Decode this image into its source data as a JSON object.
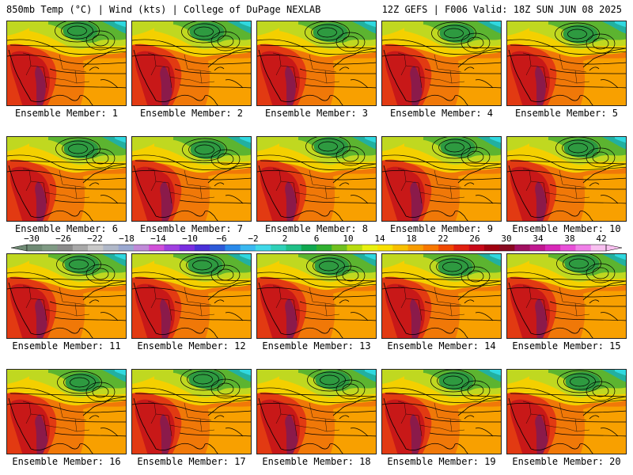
{
  "header": {
    "left": "850mb Temp (°C) | Wind (kts) | College of DuPage NEXLAB",
    "right": "12Z GEFS | F006 Valid: 18Z SUN JUN 08 2025"
  },
  "panels": [
    {
      "label": "Ensemble Member: 1"
    },
    {
      "label": "Ensemble Member: 2"
    },
    {
      "label": "Ensemble Member: 3"
    },
    {
      "label": "Ensemble Member: 4"
    },
    {
      "label": "Ensemble Member: 5"
    },
    {
      "label": "Ensemble Member: 6"
    },
    {
      "label": "Ensemble Member: 7"
    },
    {
      "label": "Ensemble Member: 8"
    },
    {
      "label": "Ensemble Member: 9"
    },
    {
      "label": "Ensemble Member: 10"
    },
    {
      "label": "Ensemble Member: 11"
    },
    {
      "label": "Ensemble Member: 12"
    },
    {
      "label": "Ensemble Member: 13"
    },
    {
      "label": "Ensemble Member: 14"
    },
    {
      "label": "Ensemble Member: 15"
    },
    {
      "label": "Ensemble Member: 16"
    },
    {
      "label": "Ensemble Member: 17"
    },
    {
      "label": "Ensemble Member: 18"
    },
    {
      "label": "Ensemble Member: 19"
    },
    {
      "label": "Ensemble Member: 20"
    }
  ],
  "colorbar": {
    "ticks": [
      "−30",
      "−26",
      "−22",
      "−18",
      "−14",
      "−10",
      "−6",
      "−2",
      "2",
      "6",
      "10",
      "14",
      "18",
      "22",
      "26",
      "30",
      "34",
      "38",
      "42"
    ],
    "colors": [
      "#6f8a74",
      "#7f9a84",
      "#8a8a8a",
      "#a8a8a8",
      "#c8c8c8",
      "#b0b8c8",
      "#9aa8d0",
      "#c08ad8",
      "#d050d8",
      "#a040e0",
      "#7a2ee0",
      "#4a30d8",
      "#2d5ad8",
      "#2a8aea",
      "#3ab8f0",
      "#40d8e8",
      "#30d0b8",
      "#20c088",
      "#10a850",
      "#30b030",
      "#70c020",
      "#b8dc10",
      "#e8f010",
      "#f8e000",
      "#f8c000",
      "#f89c00",
      "#f87800",
      "#f04800",
      "#e02010",
      "#c80818",
      "#a00010",
      "#880820",
      "#a01060",
      "#c01890",
      "#d828b8",
      "#e850d8",
      "#f080e8",
      "#f8c0f0"
    ]
  },
  "map_colors": {
    "hot_core": "#8b1a4a",
    "very_hot": "#c81818",
    "hot": "#e23a12",
    "warm": "#f07808",
    "mild": "#f8a000",
    "yellow": "#f4d000",
    "yellow_green": "#c0d820",
    "green": "#5cb430",
    "dark_green": "#2e9a40",
    "teal": "#22b0a0",
    "cyan": "#30d8e0"
  }
}
